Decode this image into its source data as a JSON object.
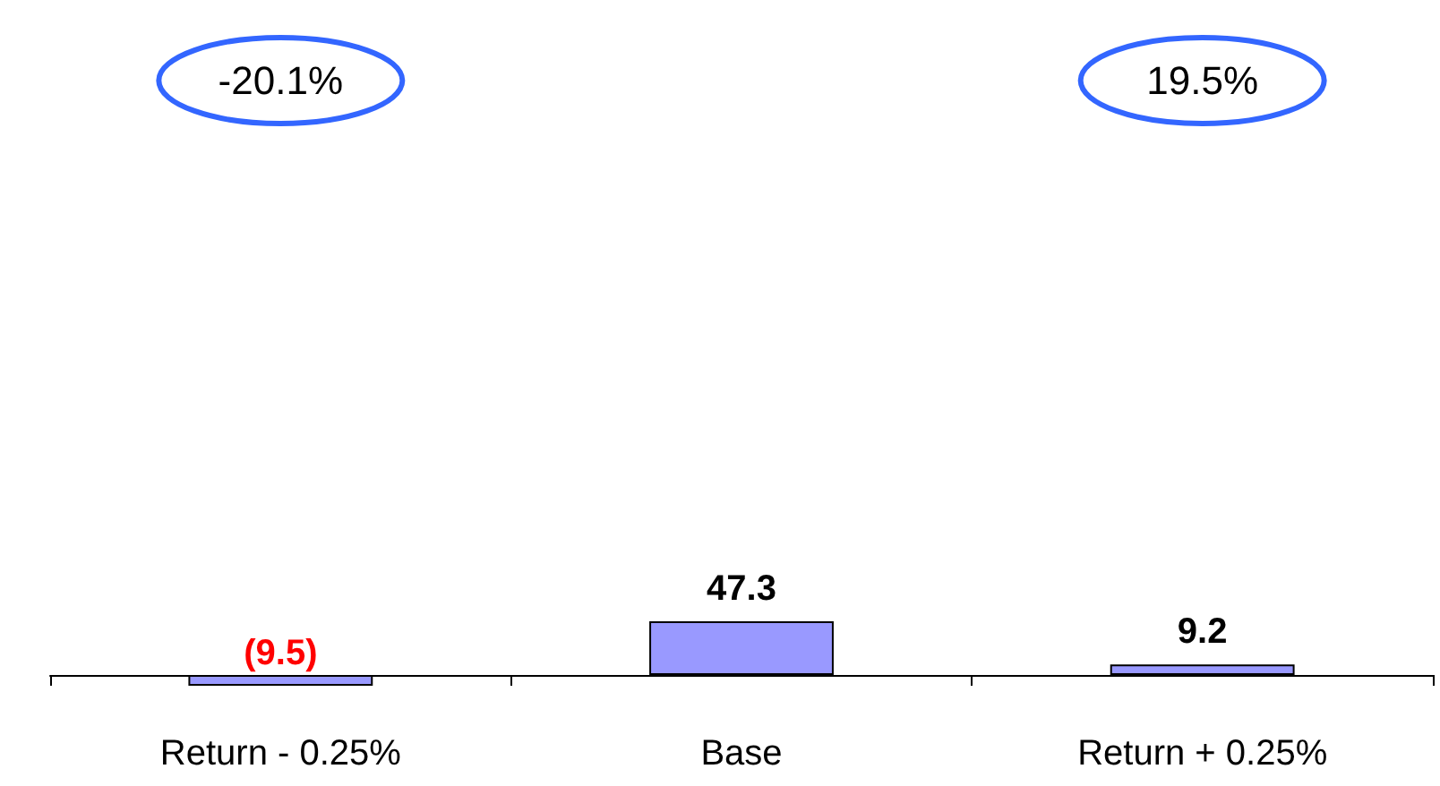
{
  "chart_data": {
    "type": "bar",
    "categories": [
      "Return - 0.25%",
      "Base",
      "Return + 0.25%"
    ],
    "values": [
      -9.5,
      47.3,
      9.2
    ],
    "value_labels": [
      "(9.5)",
      "47.3",
      "9.2"
    ],
    "color": "#9999ff",
    "annotations": [
      "-20.1%",
      "19.5%"
    ]
  }
}
